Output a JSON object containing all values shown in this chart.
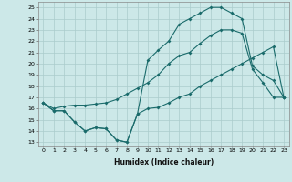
{
  "xlabel": "Humidex (Indice chaleur)",
  "bg_color": "#cce8e8",
  "grid_color": "#aacccc",
  "line_color": "#1a6b6b",
  "x_ticks": [
    0,
    1,
    2,
    3,
    4,
    5,
    6,
    7,
    8,
    9,
    10,
    11,
    12,
    13,
    14,
    15,
    16,
    17,
    18,
    19,
    20,
    21,
    22,
    23
  ],
  "y_ticks": [
    13,
    14,
    15,
    16,
    17,
    18,
    19,
    20,
    21,
    22,
    23,
    24,
    25
  ],
  "ylim": [
    12.7,
    25.5
  ],
  "xlim": [
    -0.5,
    23.5
  ],
  "line1_x": [
    0,
    1,
    2,
    3,
    4,
    5,
    6,
    7,
    8,
    9,
    10,
    11,
    12,
    13,
    14,
    15,
    16,
    17,
    18,
    19,
    20,
    21,
    22,
    23
  ],
  "line1_y": [
    16.5,
    15.8,
    15.8,
    14.8,
    14.0,
    14.3,
    14.2,
    13.2,
    13.0,
    15.5,
    16.0,
    16.1,
    16.5,
    17.0,
    17.3,
    18.0,
    18.5,
    19.0,
    19.5,
    20.0,
    20.5,
    21.0,
    21.5,
    17.0
  ],
  "line2_x": [
    0,
    1,
    2,
    3,
    4,
    5,
    6,
    7,
    8,
    9,
    10,
    11,
    12,
    13,
    14,
    15,
    16,
    17,
    18,
    19,
    20,
    21,
    22,
    23
  ],
  "line2_y": [
    16.5,
    16.0,
    16.2,
    16.3,
    16.3,
    16.4,
    16.5,
    16.8,
    17.3,
    17.8,
    18.3,
    19.0,
    20.0,
    20.7,
    21.0,
    21.8,
    22.5,
    23.0,
    23.0,
    22.7,
    19.5,
    18.3,
    17.0,
    17.0
  ],
  "line3_x": [
    0,
    1,
    2,
    3,
    4,
    5,
    6,
    7,
    8,
    9,
    10,
    11,
    12,
    13,
    14,
    15,
    16,
    17,
    18,
    19,
    20,
    21,
    22,
    23
  ],
  "line3_y": [
    16.5,
    15.8,
    15.8,
    14.8,
    14.0,
    14.3,
    14.2,
    13.2,
    13.0,
    15.5,
    20.3,
    21.2,
    22.0,
    23.5,
    24.0,
    24.5,
    25.0,
    25.0,
    24.5,
    24.0,
    19.8,
    19.0,
    18.5,
    17.0
  ]
}
